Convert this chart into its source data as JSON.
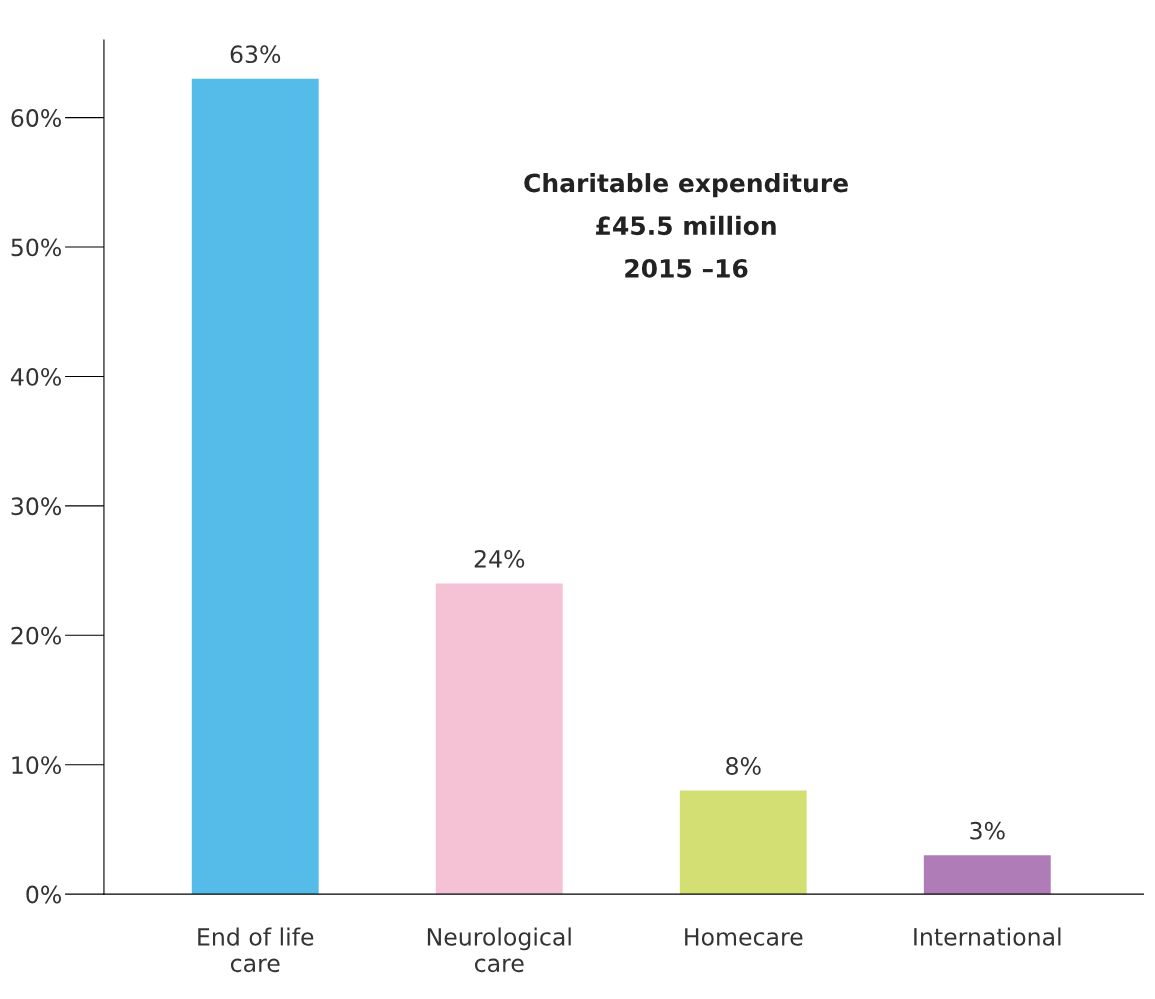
{
  "chart_data": {
    "type": "bar",
    "categories": [
      "End of life\ncare",
      "Neurological\ncare",
      "Homecare",
      "International"
    ],
    "values": [
      63,
      24,
      8,
      3
    ],
    "colors": [
      "#55bce9",
      "#f5c1d5",
      "#d3df72",
      "#b07cb8"
    ],
    "value_labels": [
      "63%",
      "24%",
      "8%",
      "3%"
    ],
    "annotations": [
      "Charitable expenditure",
      "£45.5 million",
      "2015 –16"
    ],
    "ylim": [
      0,
      66
    ],
    "yticks": [
      {
        "value": 0,
        "label": "0%"
      },
      {
        "value": 10,
        "label": "10%"
      },
      {
        "value": 20,
        "label": "20%"
      },
      {
        "value": 30,
        "label": "30%"
      },
      {
        "value": 40,
        "label": "40%"
      },
      {
        "value": 50,
        "label": "50%"
      },
      {
        "value": 60,
        "label": "60%"
      }
    ],
    "grid": false,
    "legend": false
  }
}
